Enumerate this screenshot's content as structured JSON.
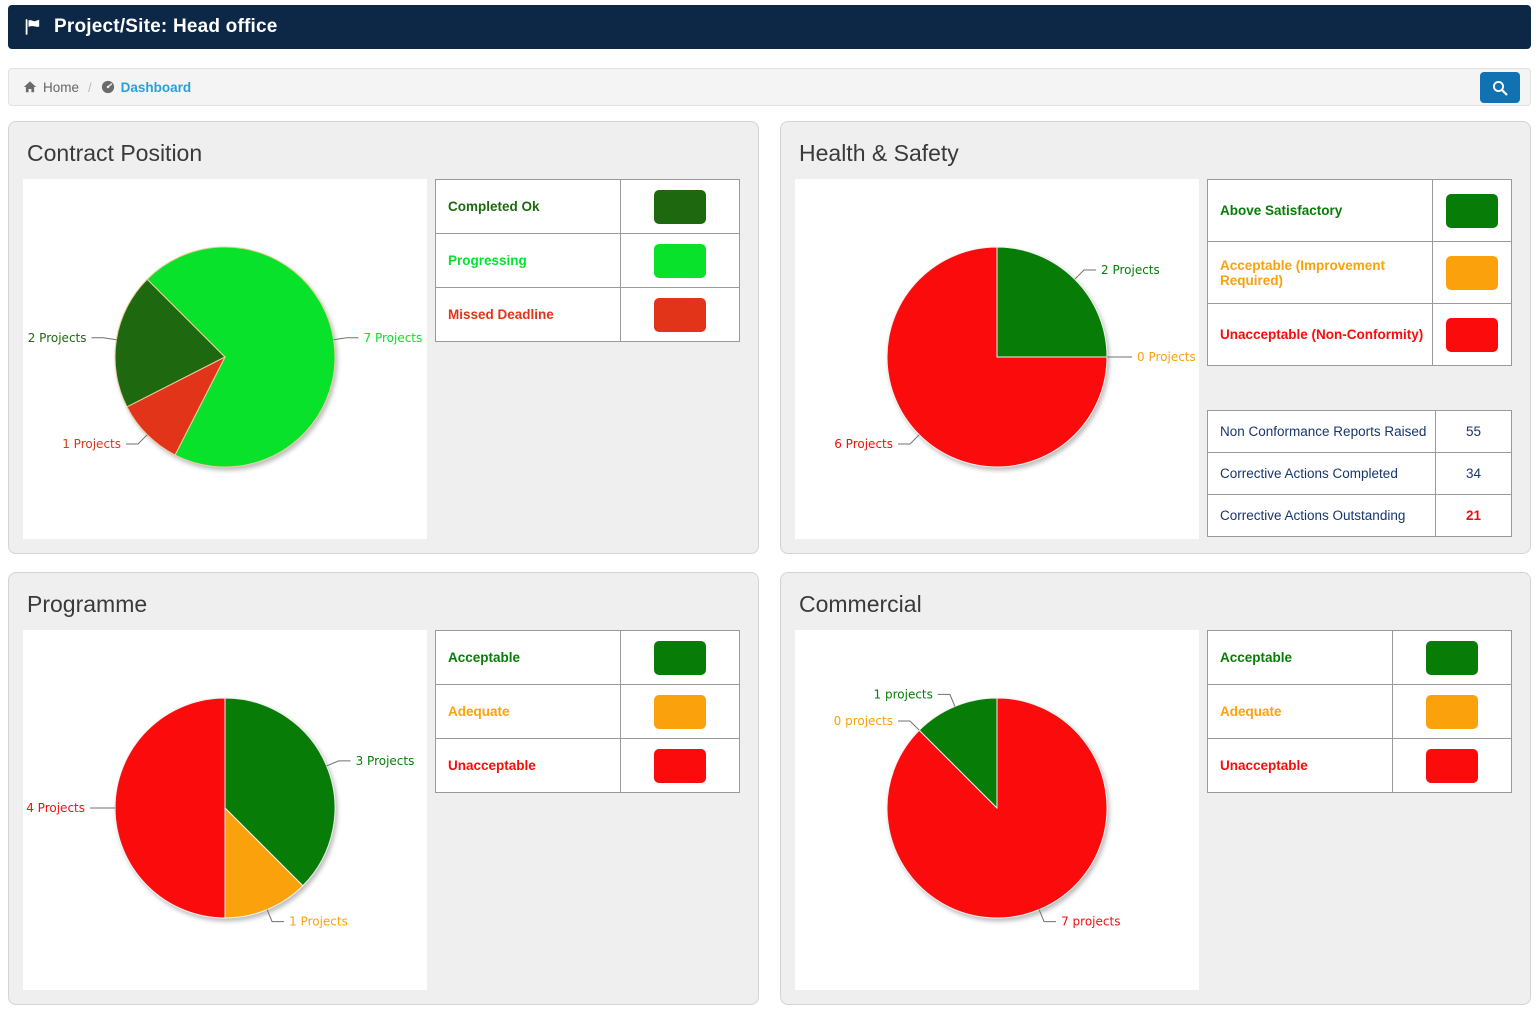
{
  "header": {
    "title": "Project/Site: Head office"
  },
  "breadcrumb": {
    "home_label": "Home",
    "separator": "/",
    "current_label": "Dashboard"
  },
  "icons": {
    "header_left": "flag-icon",
    "breadcrumb_home": "home-icon",
    "breadcrumb_current": "tachometer-icon",
    "search": "search-icon"
  },
  "colors": {
    "header_bg": "#0d2747",
    "search_button": "#1172b2",
    "breadcrumb_link": "#2b9fd9",
    "panel_bg": "#efefef",
    "stats_text": "#17366e",
    "stats_alert": "#e81010"
  },
  "panels": [
    {
      "id": "contract-position",
      "title": "Contract Position",
      "legend": [
        {
          "label": "Completed Ok",
          "color": "#1e690f"
        },
        {
          "label": "Progressing",
          "color": "#09e22b"
        },
        {
          "label": "Missed Deadline",
          "color": "#e23418"
        }
      ],
      "chart_data": {
        "type": "pie",
        "title": "Contract Position",
        "start_angle": 243,
        "stroke": "#eecf9e",
        "legend_position": "right",
        "slices": [
          {
            "label": "Completed Ok",
            "value": 2,
            "color": "#1e690f",
            "data_label": "2 Projects"
          },
          {
            "label": "Progressing",
            "value": 7,
            "color": "#09e22b",
            "data_label": "7 Projects"
          },
          {
            "label": "Missed Deadline",
            "value": 1,
            "color": "#e23418",
            "data_label": "1 Projects"
          }
        ]
      }
    },
    {
      "id": "health-safety",
      "title": "Health & Safety",
      "legend": [
        {
          "label": "Above Satisfactory",
          "color": "#077d07"
        },
        {
          "label": "Acceptable (Improvement Required)",
          "color": "#fba10b"
        },
        {
          "label": "Unacceptable (Non-Conformity)",
          "color": "#fb0b0b"
        }
      ],
      "chart_data": {
        "type": "pie",
        "title": "Health & Safety",
        "start_angle": 0,
        "stroke": "#f2f2f2",
        "legend_position": "right",
        "slices": [
          {
            "label": "Above Satisfactory",
            "value": 2,
            "color": "#077d07",
            "data_label": "2 Projects"
          },
          {
            "label": "Acceptable (Improvement Required)",
            "value": 0,
            "color": "#fba10b",
            "data_label": "0 Projects"
          },
          {
            "label": "Unacceptable (Non-Conformity)",
            "value": 6,
            "color": "#fb0b0b",
            "data_label": "6 Projects"
          }
        ]
      },
      "stats": {
        "rows": [
          {
            "label": "Non Conformance Reports Raised",
            "value": "55",
            "highlight": false
          },
          {
            "label": "Corrective Actions Completed",
            "value": "34",
            "highlight": false
          },
          {
            "label": "Corrective Actions Outstanding",
            "value": "21",
            "highlight": true
          }
        ]
      }
    },
    {
      "id": "programme",
      "title": "Programme",
      "legend": [
        {
          "label": "Acceptable",
          "color": "#077d07"
        },
        {
          "label": "Adequate",
          "color": "#fba10b"
        },
        {
          "label": "Unacceptable",
          "color": "#fb0b0b"
        }
      ],
      "chart_data": {
        "type": "pie",
        "title": "Programme",
        "start_angle": 0,
        "stroke": "#f2f2f2",
        "legend_position": "right",
        "slices": [
          {
            "label": "Acceptable",
            "value": 3,
            "color": "#077d07",
            "data_label": "3 Projects"
          },
          {
            "label": "Adequate",
            "value": 1,
            "color": "#fba10b",
            "data_label": "1 Projects"
          },
          {
            "label": "Unacceptable",
            "value": 4,
            "color": "#fb0b0b",
            "data_label": "4 Projects"
          }
        ]
      }
    },
    {
      "id": "commercial",
      "title": "Commercial",
      "legend": [
        {
          "label": "Acceptable",
          "color": "#077d07"
        },
        {
          "label": "Adequate",
          "color": "#fba10b"
        },
        {
          "label": "Unacceptable",
          "color": "#fb0b0b"
        }
      ],
      "chart_data": {
        "type": "pie",
        "title": "Commercial",
        "start_angle": 0,
        "stroke": "#f2f2f2",
        "legend_position": "right",
        "slices": [
          {
            "label": "Unacceptable",
            "value": 7,
            "color": "#fb0b0b",
            "data_label": "7 projects"
          },
          {
            "label": "Adequate",
            "value": 0,
            "color": "#fba10b",
            "data_label": "0 projects"
          },
          {
            "label": "Acceptable",
            "value": 1,
            "color": "#077d07",
            "data_label": "1 projects"
          }
        ]
      }
    }
  ]
}
